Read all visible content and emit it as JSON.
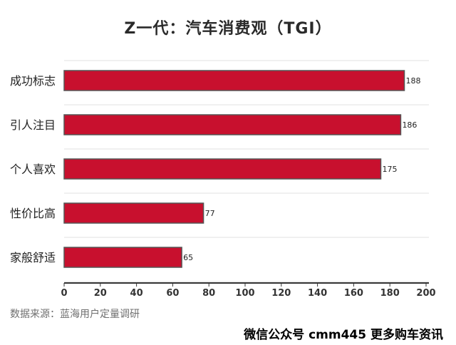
{
  "title": "Z一代：汽车消费观（TGI）",
  "source_note": "数据来源：蓝海用户定量调研",
  "watermark": "微信公众号 cmm445 更多购车资讯",
  "chart_data": {
    "type": "bar",
    "orientation": "horizontal",
    "title": "Z一代：汽车消费观（TGI）",
    "categories": [
      "成功标志",
      "引人注目",
      "个人喜欢",
      "性价比高",
      "家般舒适"
    ],
    "values": [
      188,
      186,
      175,
      77,
      65
    ],
    "value_labels": [
      "188",
      "186",
      "175",
      "77",
      "65"
    ],
    "xlim": [
      0,
      200
    ],
    "xticks": [
      "0",
      "20",
      "40",
      "60",
      "80",
      "100",
      "120",
      "140",
      "160",
      "180",
      "200"
    ],
    "grid": true,
    "bar_color": "#c8102e",
    "bar_edge_color": "#555555"
  }
}
